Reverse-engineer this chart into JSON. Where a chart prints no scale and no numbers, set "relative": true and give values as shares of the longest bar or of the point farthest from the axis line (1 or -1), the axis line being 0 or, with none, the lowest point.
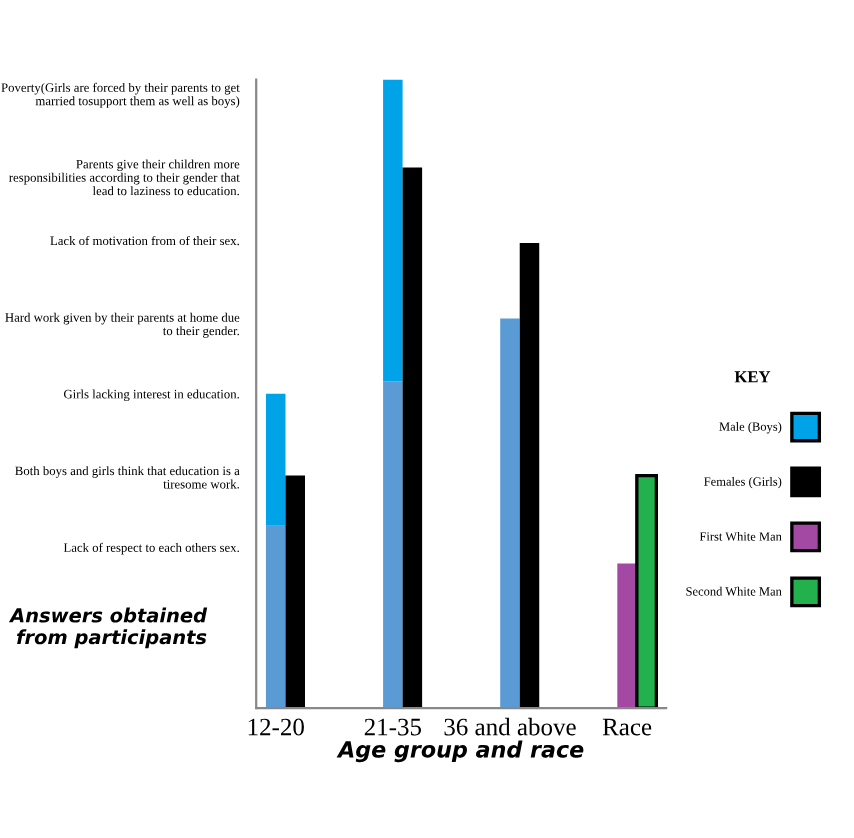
{
  "chart_data": {
    "type": "bar",
    "relative": true,
    "stacked": true,
    "xlabel": "Age group and race",
    "categories": [
      "12-20",
      null,
      null,
      null,
      null,
      null,
      "21-35",
      null,
      null,
      null,
      null,
      null,
      "36 and above",
      null,
      null,
      null,
      null,
      null,
      "Race",
      null
    ],
    "series": [
      {
        "color": "#5b9bd5",
        "values": [
          0.29,
          null,
          null,
          null,
          null,
          null,
          0.52,
          null,
          null,
          null,
          null,
          null,
          0.62,
          null,
          null,
          null,
          null,
          null,
          null,
          null
        ]
      },
      {
        "name": "Male (Boys)",
        "color": "#00a2e8",
        "values": [
          0.21,
          null,
          null,
          null,
          null,
          null,
          0.48,
          null,
          null,
          null,
          null,
          null,
          null,
          null,
          null,
          null,
          null,
          null,
          null,
          null
        ]
      },
      {
        "name": "Females (Girls)",
        "color": "#000000",
        "values": [
          null,
          0.37,
          null,
          null,
          null,
          null,
          null,
          0.86,
          null,
          null,
          null,
          null,
          null,
          0.74,
          null,
          null,
          null,
          null,
          null,
          null
        ]
      },
      {
        "name": "First White Man",
        "color": "#a349a4",
        "values": [
          null,
          null,
          null,
          null,
          null,
          null,
          null,
          null,
          null,
          null,
          null,
          null,
          null,
          null,
          null,
          null,
          null,
          null,
          0.23,
          null
        ]
      },
      {
        "name": "Second White Man",
        "color": "#22b14c",
        "values": [
          null,
          null,
          null,
          null,
          null,
          null,
          null,
          null,
          null,
          null,
          null,
          null,
          null,
          null,
          null,
          null,
          null,
          null,
          null,
          0.37
        ]
      }
    ],
    "legend": "right",
    "legend_title": "KEY",
    "annotations": [
      "Poverty(Girls are forced by their parents to get married tosupport them as well as boys)",
      "Parents give their children more responsibilities according to their gender that lead to laziness to education.",
      "Lack of motivation from of their sex.",
      "Hard work given by their parents at home due to their gender.",
      "Girls lacking interest in education.",
      "Both boys and girls think that education is a tiresome work.",
      "Lack of respect to each others sex.",
      "Answers obtained from participants"
    ]
  }
}
